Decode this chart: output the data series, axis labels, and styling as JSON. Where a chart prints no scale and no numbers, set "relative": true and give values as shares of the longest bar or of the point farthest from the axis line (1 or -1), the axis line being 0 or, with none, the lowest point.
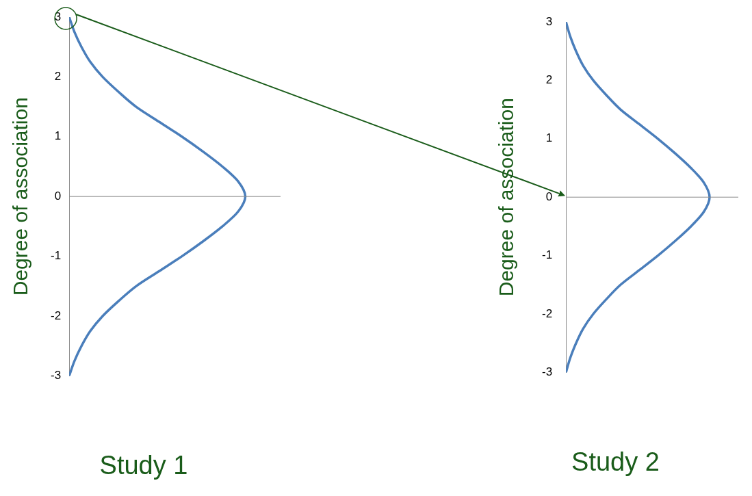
{
  "chart_data": [
    {
      "type": "line",
      "orientation": "horizontal",
      "relative": true,
      "title": "Study 1",
      "ylabel": "Degree of association",
      "x": [
        -3,
        -2.75,
        -2.5,
        -2.25,
        -2,
        -1.75,
        -1.5,
        -1.25,
        -1,
        -0.75,
        -0.5,
        -0.25,
        0,
        0.25,
        0.5,
        0.75,
        1,
        1.25,
        1.5,
        1.75,
        2,
        2.25,
        2.5,
        2.75,
        3
      ],
      "series": [
        {
          "color": "#4a7ebb",
          "values": [
            0,
            0.03,
            0.07,
            0.12,
            0.19,
            0.28,
            0.38,
            0.51,
            0.64,
            0.76,
            0.87,
            0.96,
            1,
            0.96,
            0.87,
            0.76,
            0.64,
            0.51,
            0.38,
            0.28,
            0.19,
            0.12,
            0.07,
            0.03,
            0
          ]
        }
      ],
      "ylim": [
        -3,
        3
      ],
      "yticks": [
        -3,
        -2,
        -1,
        0,
        1,
        2,
        3
      ],
      "grid": false,
      "legend": false,
      "marker": "none",
      "line_style": "solid",
      "ref_lines": [
        {
          "axis": "y",
          "value": 0,
          "color": "#8c8c8c"
        }
      ]
    },
    {
      "type": "line",
      "orientation": "horizontal",
      "relative": true,
      "title": "Study 2",
      "ylabel": "Degree of association",
      "x": [
        -3,
        -2.75,
        -2.5,
        -2.25,
        -2,
        -1.75,
        -1.5,
        -1.25,
        -1,
        -0.75,
        -0.5,
        -0.25,
        0,
        0.25,
        0.5,
        0.75,
        1,
        1.25,
        1.5,
        1.75,
        2,
        2.25,
        2.5,
        2.75,
        3
      ],
      "series": [
        {
          "color": "#4a7ebb",
          "values": [
            0,
            0.03,
            0.07,
            0.12,
            0.19,
            0.28,
            0.38,
            0.51,
            0.64,
            0.76,
            0.87,
            0.96,
            1,
            0.96,
            0.87,
            0.76,
            0.64,
            0.51,
            0.38,
            0.28,
            0.19,
            0.12,
            0.07,
            0.03,
            0
          ]
        }
      ],
      "ylim": [
        -3,
        3
      ],
      "yticks": [
        -3,
        -2,
        -1,
        0,
        1,
        2,
        3
      ],
      "grid": false,
      "legend": false,
      "marker": "none",
      "line_style": "solid",
      "ref_lines": [
        {
          "axis": "y",
          "value": 0,
          "color": "#8c8c8c"
        }
      ]
    }
  ]
}
